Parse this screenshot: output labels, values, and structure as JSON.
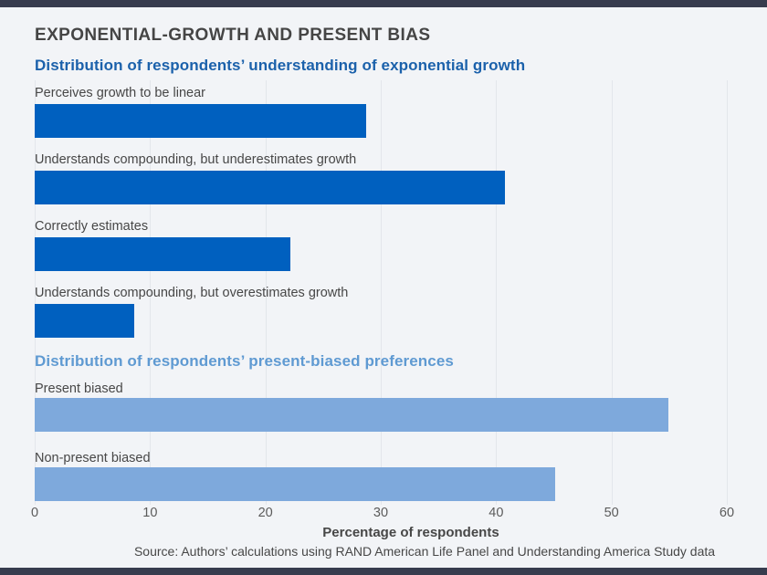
{
  "figure": {
    "title": "EXPONENTIAL-GROWTH AND PRESENT BIAS",
    "xaxis": {
      "label": "Percentage of respondents",
      "min": 0,
      "max": 60,
      "ticks": [
        0,
        10,
        20,
        30,
        40,
        50,
        60
      ]
    },
    "source": "Source: Authors’ calculations using RAND American Life Panel and Understanding America Study data"
  },
  "chart_data": [
    {
      "type": "bar",
      "orientation": "horizontal",
      "title": "Distribution of respondents’ understanding of exponential growth",
      "categories": [
        "Perceives growth to be linear",
        "Understands compounding, but underestimates growth",
        "Correctly estimates",
        "Understands compounding, but overestimates growth"
      ],
      "values": [
        28.7,
        40.8,
        22.2,
        8.6
      ],
      "bar_color": "#0060bf",
      "title_color": "#1b61ab",
      "xlabel": "Percentage of respondents",
      "xlim": [
        0,
        60
      ],
      "grid": true,
      "legend": "none"
    },
    {
      "type": "bar",
      "orientation": "horizontal",
      "title": "Distribution of respondents’ present-biased preferences",
      "categories": [
        "Present biased",
        "Non-present biased"
      ],
      "values": [
        54.9,
        45.1
      ],
      "bar_color": "#7ea9dc",
      "title_color": "#5f9ad2",
      "xlabel": "Percentage of respondents",
      "xlim": [
        0,
        60
      ],
      "grid": true,
      "legend": "none"
    }
  ],
  "colors": {
    "background": "#f2f4f7",
    "edge_bars": "#373c4e",
    "gridline": "#e3e6eb",
    "title_text": "#454545",
    "label_text": "#474747",
    "tick_text": "#5b5b5b"
  }
}
